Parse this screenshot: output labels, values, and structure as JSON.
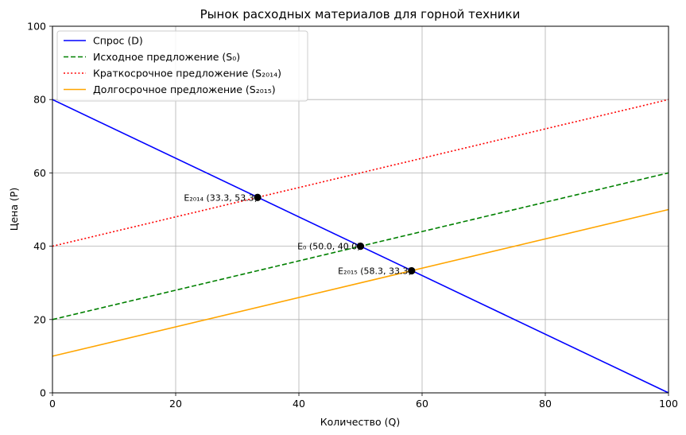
{
  "chart_data": {
    "type": "line",
    "title": "Рынок расходных материалов для горной техники",
    "xlabel": "Количество (Q)",
    "ylabel": "Цена (P)",
    "xlim": [
      0,
      100
    ],
    "ylim": [
      0,
      100
    ],
    "xticks": [
      0,
      20,
      40,
      60,
      80,
      100
    ],
    "yticks": [
      0,
      20,
      40,
      60,
      80,
      100
    ],
    "grid": true,
    "legend_position": "top-left",
    "series": [
      {
        "name": "Спрос (D)",
        "color": "#0000ff",
        "dash": "solid",
        "points": [
          [
            0,
            80
          ],
          [
            100,
            0
          ]
        ]
      },
      {
        "name": "Исходное предложение (S₀)",
        "color": "#008000",
        "dash": "dashed",
        "points": [
          [
            0,
            20
          ],
          [
            100,
            60
          ]
        ]
      },
      {
        "name": "Краткосрочное предложение (S₂₀₁₄)",
        "color": "#ff0000",
        "dash": "dotted",
        "points": [
          [
            0,
            40
          ],
          [
            100,
            80
          ]
        ]
      },
      {
        "name": "Долгосрочное предложение (S₂₀₁₅)",
        "color": "#ffa500",
        "dash": "solid",
        "points": [
          [
            0,
            10
          ],
          [
            100,
            50
          ]
        ]
      }
    ],
    "annotations": [
      {
        "label": "E₂₀₁₄ (33.3, 53.3)",
        "x": 33.3,
        "y": 53.3
      },
      {
        "label": "E₀ (50.0, 40.0)",
        "x": 50.0,
        "y": 40.0
      },
      {
        "label": "E₂₀₁₅ (58.3, 33.3)",
        "x": 58.3,
        "y": 33.3
      }
    ]
  }
}
